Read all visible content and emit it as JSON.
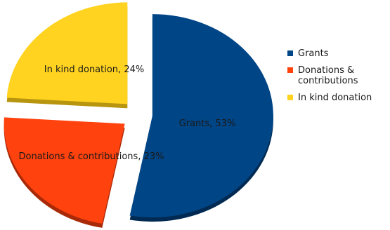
{
  "chart_data": {
    "type": "pie",
    "title": "",
    "slices": [
      {
        "name": "Grants",
        "value": 53,
        "label": "Grants, 53%",
        "color": "#004586",
        "shade": "#002a52"
      },
      {
        "name": "Donations & contributions",
        "value": 23,
        "label": "Donations & contributions, 23%",
        "color": "#ff420e",
        "shade": "#a82a08"
      },
      {
        "name": "In kind donation",
        "value": 24,
        "label": "In kind donation, 24%",
        "color": "#ffd320",
        "shade": "#b8950f"
      }
    ],
    "legend": {
      "placement": "right",
      "entries": [
        {
          "lines": [
            "Grants"
          ],
          "color": "#004586"
        },
        {
          "lines": [
            "Donations &",
            "contributions"
          ],
          "color": "#ff420e"
        },
        {
          "lines": [
            "In kind donation"
          ],
          "color": "#ffd320"
        }
      ]
    }
  }
}
